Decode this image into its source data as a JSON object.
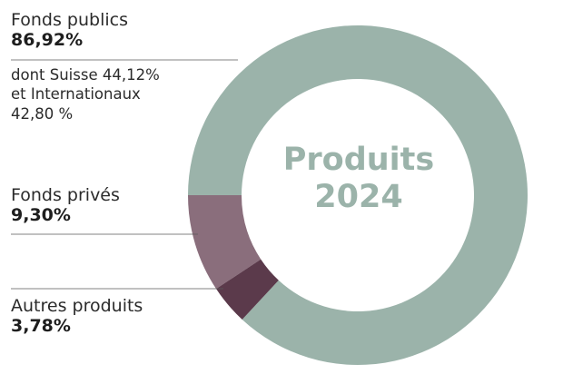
{
  "chart_data": {
    "type": "pie",
    "title": "Produits",
    "subtitle": "2024",
    "categories": [
      "Fonds publics",
      "Fonds privés",
      "Autres produits"
    ],
    "values": [
      86.92,
      9.3,
      3.78
    ],
    "value_labels": [
      "86,92%",
      "9,30%",
      "3,78%"
    ],
    "colors": [
      "#9bb3aa",
      "#8a6e7c",
      "#5b3a4b"
    ],
    "annotation": {
      "line1": "dont Suisse 44,12%",
      "line2": "et Internationaux",
      "line3": "42,80 %"
    }
  }
}
